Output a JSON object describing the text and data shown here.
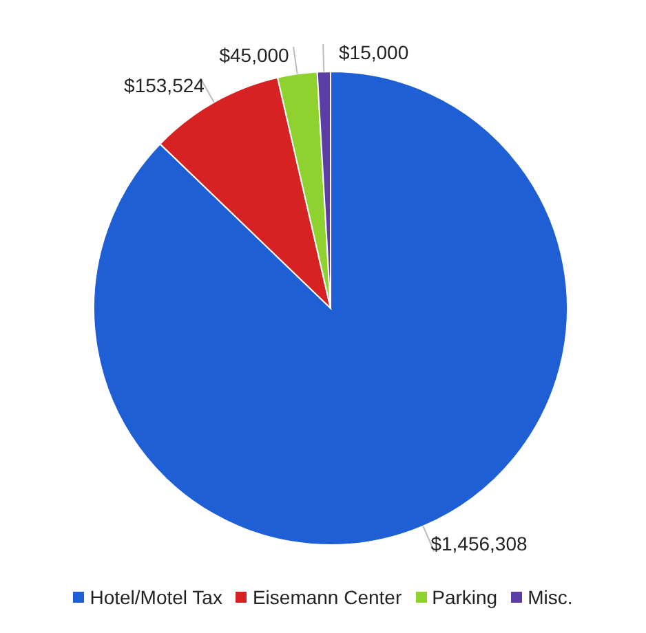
{
  "chart_data": {
    "type": "pie",
    "categories": [
      "Hotel/Motel Tax",
      "Eisemann Center",
      "Parking",
      "Misc."
    ],
    "values": [
      1456308,
      153524,
      45000,
      15000
    ],
    "colors": [
      "#1f5fd6",
      "#d62222",
      "#8fd12e",
      "#5a3ea6"
    ],
    "value_labels": [
      "$1,456,308",
      "$153,524",
      "$45,000",
      "$15,000"
    ],
    "legend": "bottom"
  }
}
